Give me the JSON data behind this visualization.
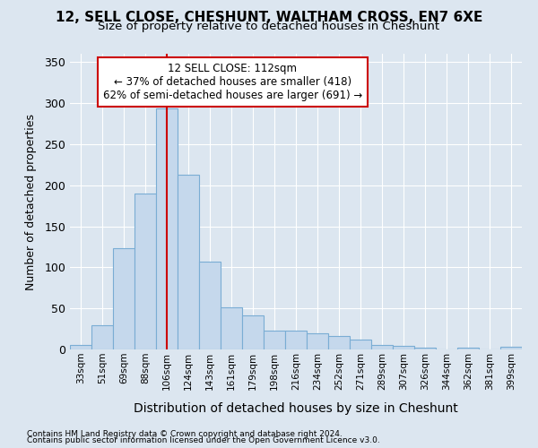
{
  "title": "12, SELL CLOSE, CHESHUNT, WALTHAM CROSS, EN7 6XE",
  "subtitle": "Size of property relative to detached houses in Cheshunt",
  "xlabel": "Distribution of detached houses by size in Cheshunt",
  "ylabel": "Number of detached properties",
  "footnote1": "Contains HM Land Registry data © Crown copyright and database right 2024.",
  "footnote2": "Contains public sector information licensed under the Open Government Licence v3.0.",
  "categories": [
    "33sqm",
    "51sqm",
    "69sqm",
    "88sqm",
    "106sqm",
    "124sqm",
    "143sqm",
    "161sqm",
    "179sqm",
    "198sqm",
    "216sqm",
    "234sqm",
    "252sqm",
    "271sqm",
    "289sqm",
    "307sqm",
    "326sqm",
    "344sqm",
    "362sqm",
    "381sqm",
    "399sqm"
  ],
  "values": [
    5,
    29,
    123,
    190,
    293,
    213,
    107,
    51,
    42,
    23,
    23,
    20,
    16,
    12,
    6,
    4,
    2,
    0,
    2,
    0,
    3
  ],
  "bar_color": "#c5d8ec",
  "bar_edge_color": "#7aadd4",
  "vline_x": 4,
  "vline_color": "#cc0000",
  "annotation_title": "12 SELL CLOSE: 112sqm",
  "annotation_line1": "← 37% of detached houses are smaller (418)",
  "annotation_line2": "62% of semi-detached houses are larger (691) →",
  "annotation_box_color": "#ffffff",
  "annotation_box_edge": "#cc0000",
  "ylim": [
    0,
    360
  ],
  "yticks": [
    0,
    50,
    100,
    150,
    200,
    250,
    300,
    350
  ],
  "bg_color": "#dce6f0",
  "plot_bg_color": "#dce6f0",
  "grid_color": "#ffffff",
  "title_fontsize": 11,
  "subtitle_fontsize": 9.5
}
